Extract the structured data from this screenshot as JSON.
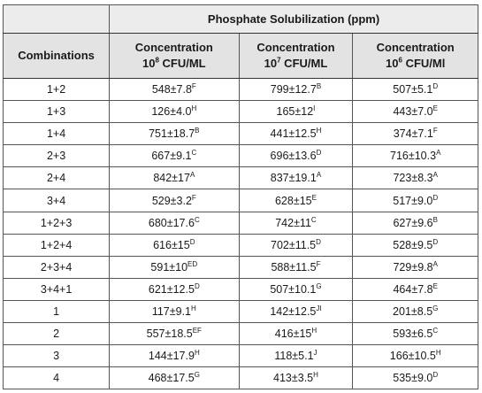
{
  "table": {
    "title": "Phosphate Solubilization (ppm)",
    "headers": [
      {
        "line1": "Combinations",
        "line2": "",
        "sup": "",
        "unit": ""
      },
      {
        "line1": "Concentration",
        "line2": "10",
        "sup": "8",
        "unit": " CFU/ML"
      },
      {
        "line1": "Concentration",
        "line2": "10",
        "sup": "7",
        "unit": " CFU/ML"
      },
      {
        "line1": "Concentration",
        "line2": "10",
        "sup": "6",
        "unit": " CFU/Ml"
      }
    ],
    "rows": [
      {
        "combo": "1+2",
        "c1": {
          "v": "548±7.8",
          "s": "F"
        },
        "c2": {
          "v": "799±12.7",
          "s": "B"
        },
        "c3": {
          "v": "507±5.1",
          "s": "D"
        }
      },
      {
        "combo": "1+3",
        "c1": {
          "v": "126±4.0",
          "s": "H"
        },
        "c2": {
          "v": "165±12",
          "s": "I"
        },
        "c3": {
          "v": "443±7.0",
          "s": "E"
        }
      },
      {
        "combo": "1+4",
        "c1": {
          "v": "751±18.7",
          "s": "B"
        },
        "c2": {
          "v": "441±12.5",
          "s": "H"
        },
        "c3": {
          "v": "374±7.1",
          "s": "F"
        }
      },
      {
        "combo": "2+3",
        "c1": {
          "v": "667±9.1",
          "s": "C"
        },
        "c2": {
          "v": "696±13.6",
          "s": "D"
        },
        "c3": {
          "v": "716±10.3",
          "s": "A"
        }
      },
      {
        "combo": "2+4",
        "c1": {
          "v": "842±17",
          "s": "A"
        },
        "c2": {
          "v": "837±19.1",
          "s": "A"
        },
        "c3": {
          "v": "723±8.3",
          "s": "A"
        }
      },
      {
        "combo": "3+4",
        "c1": {
          "v": "529±3.2",
          "s": "F"
        },
        "c2": {
          "v": "628±15",
          "s": "E"
        },
        "c3": {
          "v": "517±9.0",
          "s": "D"
        }
      },
      {
        "combo": "1+2+3",
        "c1": {
          "v": "680±17.6",
          "s": "C"
        },
        "c2": {
          "v": "742±11",
          "s": "C"
        },
        "c3": {
          "v": "627±9.6",
          "s": "B"
        }
      },
      {
        "combo": "1+2+4",
        "c1": {
          "v": "616±15",
          "s": "D"
        },
        "c2": {
          "v": "702±11.5",
          "s": "D"
        },
        "c3": {
          "v": "528±9.5",
          "s": "D"
        }
      },
      {
        "combo": "2+3+4",
        "c1": {
          "v": "591±10",
          "s": "ED"
        },
        "c2": {
          "v": "588±11.5",
          "s": "F"
        },
        "c3": {
          "v": "729±9.8",
          "s": "A"
        }
      },
      {
        "combo": "3+4+1",
        "c1": {
          "v": "621±12.5",
          "s": "D"
        },
        "c2": {
          "v": "507±10.1",
          "s": "G"
        },
        "c3": {
          "v": "464±7.8",
          "s": "E"
        }
      },
      {
        "combo": "1",
        "c1": {
          "v": "117±9.1",
          "s": "H"
        },
        "c2": {
          "v": "142±12.5",
          "s": "JI"
        },
        "c3": {
          "v": "201±8.5",
          "s": "G"
        }
      },
      {
        "combo": "2",
        "c1": {
          "v": "557±18.5",
          "s": "EF"
        },
        "c2": {
          "v": "416±15",
          "s": "H"
        },
        "c3": {
          "v": "593±6.5",
          "s": "C"
        }
      },
      {
        "combo": "3",
        "c1": {
          "v": "144±17.9",
          "s": "H"
        },
        "c2": {
          "v": "118±5.1",
          "s": "J"
        },
        "c3": {
          "v": "166±10.5",
          "s": "H"
        }
      },
      {
        "combo": "4",
        "c1": {
          "v": "468±17.5",
          "s": "G"
        },
        "c2": {
          "v": "413±3.5",
          "s": "H"
        },
        "c3": {
          "v": "535±9.0",
          "s": "D"
        }
      }
    ]
  }
}
